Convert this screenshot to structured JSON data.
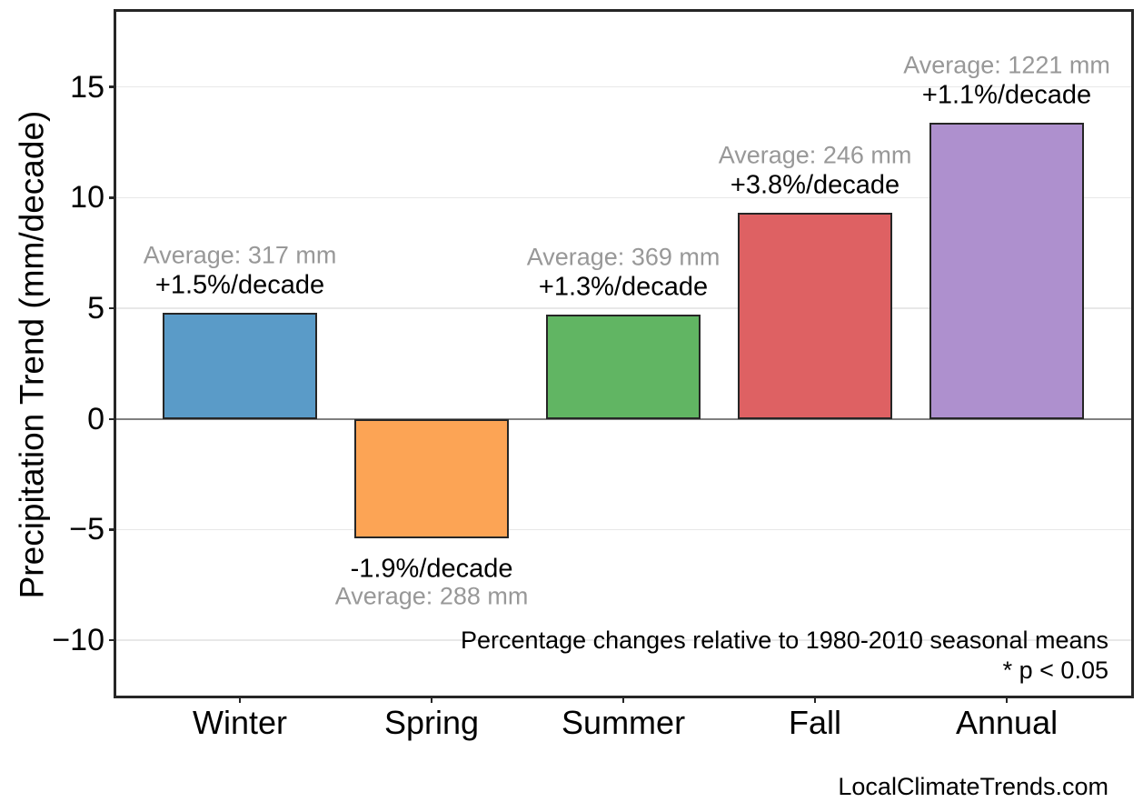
{
  "chart_data": {
    "type": "bar",
    "title": "",
    "xlabel": "",
    "ylabel": "Precipitation Trend (mm/decade)",
    "categories": [
      "Winter",
      "Spring",
      "Summer",
      "Fall",
      "Annual"
    ],
    "values": [
      4.8,
      -5.4,
      4.7,
      9.3,
      13.4
    ],
    "bars": [
      {
        "category": "Winter",
        "value": 4.8,
        "color": "#5A9BC8",
        "pct_label": "+1.5%/decade",
        "avg_label": "Average: 317 mm"
      },
      {
        "category": "Spring",
        "value": -5.4,
        "color": "#FCA455",
        "pct_label": "-1.9%/decade",
        "avg_label": "Average: 288 mm"
      },
      {
        "category": "Summer",
        "value": 4.7,
        "color": "#61B563",
        "pct_label": "+1.3%/decade",
        "avg_label": "Average: 369 mm"
      },
      {
        "category": "Fall",
        "value": 9.3,
        "color": "#DE6163",
        "pct_label": "+3.8%/decade",
        "avg_label": "Average: 246 mm"
      },
      {
        "category": "Annual",
        "value": 13.4,
        "color": "#AE90CE",
        "pct_label": "+1.1%/decade",
        "avg_label": "Average: 1221 mm"
      }
    ],
    "yticks": [
      -10,
      -5,
      0,
      5,
      10,
      15
    ],
    "ylim": [
      -12.5,
      18.4
    ],
    "grid": true,
    "legend": null,
    "notes": [
      "Percentage changes relative to 1980-2010 seasonal means",
      "* p < 0.05"
    ],
    "watermark": "LocalClimateTrends.com",
    "colors": {
      "grid": "#e8e8e8",
      "zero_line": "#808080",
      "spine": "#262626",
      "avg_label_text": "#989898",
      "text": "#000000"
    }
  }
}
